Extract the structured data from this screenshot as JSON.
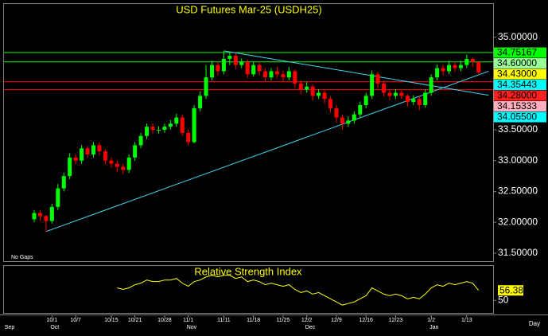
{
  "chart_data": {
    "type": "candlestick",
    "title": "USD Futures Mar-25 (USDH25)",
    "categories": [
      null,
      null,
      null,
      "10/1",
      null,
      null,
      null,
      "10/7",
      null,
      null,
      null,
      null,
      null,
      "10/15",
      null,
      null,
      null,
      "10/21",
      null,
      null,
      null,
      null,
      "10/28",
      null,
      null,
      null,
      "11/1",
      null,
      null,
      null,
      null,
      null,
      "11/11",
      null,
      null,
      null,
      null,
      "11/18",
      null,
      null,
      null,
      null,
      "11/25",
      null,
      null,
      null,
      "12/2",
      null,
      null,
      null,
      null,
      "12/9",
      null,
      null,
      null,
      null,
      "12/16",
      null,
      null,
      null,
      null,
      "12/23",
      null,
      null,
      null,
      null,
      null,
      "1/2",
      null,
      null,
      null,
      null,
      null,
      "1/13",
      null,
      null
    ],
    "months": [
      "Sep",
      null,
      null,
      "Oct",
      null,
      null,
      null,
      null,
      null,
      null,
      null,
      null,
      null,
      null,
      null,
      null,
      null,
      null,
      null,
      null,
      null,
      null,
      null,
      null,
      null,
      null,
      "Nov",
      null,
      null,
      null,
      null,
      null,
      null,
      null,
      null,
      null,
      null,
      null,
      null,
      null,
      null,
      null,
      null,
      null,
      null,
      null,
      "Dec",
      null,
      null,
      null,
      null,
      null,
      null,
      null,
      null,
      null,
      null,
      null,
      null,
      null,
      null,
      null,
      null,
      null,
      null,
      null,
      null,
      "Jan",
      null,
      null,
      null,
      null,
      null,
      null,
      null,
      null
    ],
    "open": [
      32.05,
      32.15,
      32.1,
      32.02,
      32.25,
      32.55,
      32.75,
      33.05,
      33.0,
      33.2,
      33.1,
      33.25,
      33.15,
      33.0,
      32.95,
      32.9,
      32.85,
      33.05,
      33.25,
      33.4,
      33.55,
      33.5,
      33.5,
      33.55,
      33.6,
      33.7,
      33.45,
      33.3,
      33.85,
      34.05,
      34.35,
      34.55,
      34.45,
      34.65,
      34.7,
      34.55,
      34.6,
      34.4,
      34.55,
      34.45,
      34.35,
      34.45,
      34.4,
      34.35,
      34.45,
      34.25,
      34.15,
      34.2,
      34.05,
      34.1,
      34.0,
      33.85,
      33.7,
      33.6,
      33.65,
      33.75,
      33.9,
      34.05,
      34.4,
      34.25,
      34.1,
      34.05,
      34.1,
      34.05,
      33.95,
      34.0,
      33.9,
      34.1,
      34.35,
      34.5,
      34.45,
      34.55,
      34.5,
      34.55,
      34.65,
      34.6
    ],
    "high": [
      32.2,
      32.2,
      32.12,
      32.3,
      32.62,
      32.8,
      33.12,
      33.1,
      33.25,
      33.24,
      33.3,
      33.3,
      33.18,
      33.05,
      33.0,
      32.95,
      33.1,
      33.3,
      33.45,
      33.6,
      33.6,
      33.56,
      33.6,
      33.66,
      33.76,
      33.75,
      33.5,
      33.9,
      34.12,
      34.55,
      34.62,
      34.6,
      34.78,
      34.76,
      34.74,
      34.66,
      34.64,
      34.6,
      34.6,
      34.5,
      34.5,
      34.52,
      34.46,
      34.52,
      34.48,
      34.3,
      34.28,
      34.24,
      34.16,
      34.14,
      34.04,
      33.9,
      33.75,
      33.72,
      33.8,
      33.96,
      34.1,
      34.46,
      34.44,
      34.3,
      34.16,
      34.16,
      34.14,
      34.08,
      34.06,
      34.04,
      34.16,
      34.4,
      34.56,
      34.56,
      34.62,
      34.6,
      34.62,
      34.72,
      34.68,
      34.62
    ],
    "low": [
      32.0,
      32.02,
      31.85,
      31.98,
      32.2,
      32.5,
      32.7,
      32.94,
      32.95,
      33.04,
      33.05,
      33.08,
      32.94,
      32.88,
      32.82,
      32.78,
      32.8,
      33.0,
      33.2,
      33.35,
      33.44,
      33.44,
      33.45,
      33.5,
      33.55,
      33.4,
      33.24,
      33.28,
      33.8,
      34.0,
      34.3,
      34.38,
      34.4,
      34.55,
      34.48,
      34.5,
      34.34,
      34.36,
      34.38,
      34.28,
      34.3,
      34.34,
      34.28,
      34.3,
      34.18,
      34.08,
      34.1,
      33.98,
      34.0,
      33.92,
      33.78,
      33.62,
      33.5,
      33.55,
      33.6,
      33.7,
      33.85,
      34.0,
      34.18,
      34.04,
      33.98,
      34.0,
      34.0,
      33.88,
      33.9,
      33.82,
      33.86,
      34.05,
      34.3,
      34.38,
      34.4,
      34.44,
      34.45,
      34.5,
      34.52,
      34.4
    ],
    "close": [
      32.15,
      32.1,
      32.02,
      32.25,
      32.55,
      32.75,
      33.05,
      33.0,
      33.2,
      33.1,
      33.25,
      33.15,
      33.0,
      32.95,
      32.9,
      32.85,
      33.05,
      33.25,
      33.4,
      33.55,
      33.5,
      33.5,
      33.55,
      33.6,
      33.7,
      33.45,
      33.3,
      33.85,
      34.05,
      34.35,
      34.55,
      34.45,
      34.65,
      34.7,
      34.55,
      34.6,
      34.4,
      34.55,
      34.45,
      34.35,
      34.45,
      34.4,
      34.35,
      34.45,
      34.25,
      34.15,
      34.2,
      34.05,
      34.1,
      34.0,
      33.85,
      33.7,
      33.6,
      33.65,
      33.75,
      33.9,
      34.05,
      34.4,
      34.25,
      34.1,
      34.05,
      34.1,
      34.05,
      33.95,
      34.0,
      33.9,
      34.1,
      34.35,
      34.5,
      34.45,
      34.55,
      34.5,
      34.55,
      34.65,
      34.6,
      34.43
    ],
    "up_color": "#00ff00",
    "down_color": "#ff0000",
    "ylim": [
      31.37,
      35.54
    ],
    "yticks": [
      {
        "value": 35,
        "label": "35.00000"
      },
      {
        "value": 33.5,
        "label": "33.50000"
      },
      {
        "value": 33,
        "label": "33.00000"
      },
      {
        "value": 32.5,
        "label": "32.50000"
      },
      {
        "value": 32,
        "label": "32.00000"
      },
      {
        "value": 31.5,
        "label": "31.50000"
      }
    ],
    "price_labels": [
      {
        "value": 34.75167,
        "bg": "#00ff00",
        "line": "#00ff00"
      },
      {
        "value": 34.6,
        "label": "34.60000",
        "bg": "#99ff99",
        "line": "#00ff00"
      },
      {
        "value": 34.43,
        "label": "34.43000",
        "bg": "#ffff00"
      },
      {
        "value": 34.35443,
        "bg": "#00ffff"
      },
      {
        "value": 34.28,
        "label": "34.28000",
        "bg": "#ff2020",
        "line": "#ff0000"
      },
      {
        "value": 34.15333,
        "bg": "#ffb0c0",
        "line": "#ff0000"
      },
      {
        "value": 34.055,
        "label": "34.05500",
        "bg": "#00ffff"
      }
    ],
    "trend_color": "#40d8f0",
    "trend_lines": [
      {
        "from": [
          2,
          31.85
        ],
        "to": [
          76.7,
          34.45
        ]
      },
      {
        "from": [
          32,
          34.78
        ],
        "to": [
          76.7,
          34.06
        ]
      }
    ],
    "note": "No Gaps",
    "x_axis_label": "Day",
    "rsi": {
      "title": "Relative Strength Index",
      "color": "#ffff00",
      "ylim": [
        42,
        72
      ],
      "yticks": [
        50
      ],
      "values": [
        null,
        null,
        null,
        null,
        null,
        null,
        null,
        null,
        null,
        null,
        null,
        null,
        null,
        null,
        58,
        57,
        58,
        60,
        61,
        63,
        62,
        62,
        63,
        63,
        64,
        61,
        59,
        62,
        63,
        65,
        66,
        65,
        66,
        66,
        64,
        65,
        62,
        63,
        62,
        60,
        61,
        60,
        59,
        60,
        57,
        55,
        56,
        54,
        55,
        53,
        51,
        49,
        47,
        48,
        49,
        51,
        53,
        58,
        56,
        54,
        53,
        54,
        53,
        51,
        52,
        51,
        54,
        58,
        60,
        59,
        61,
        60,
        61,
        62,
        61,
        56.38
      ]
    }
  }
}
